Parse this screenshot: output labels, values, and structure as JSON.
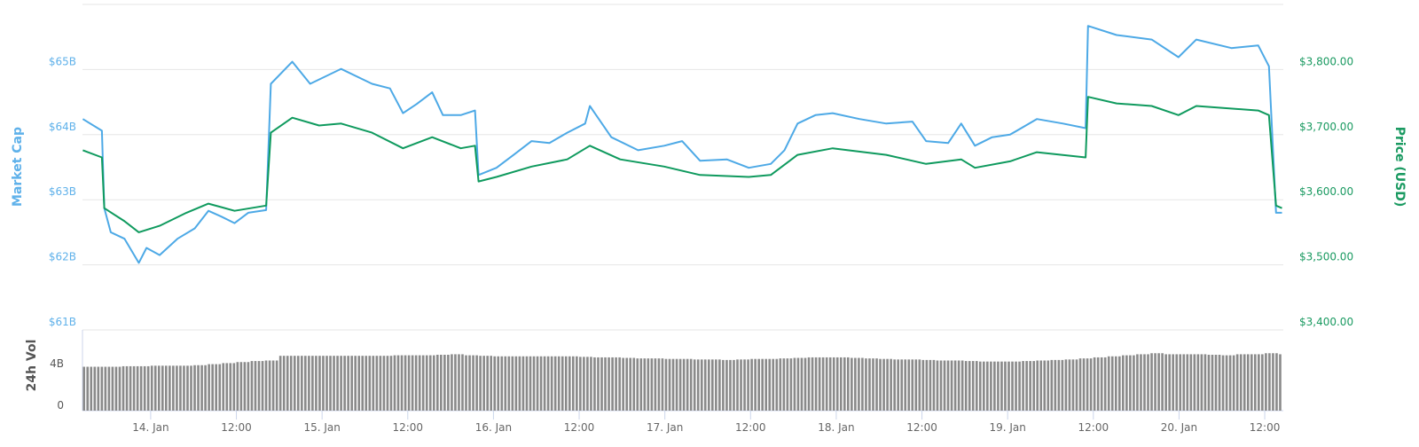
{
  "chart_data": {
    "type": "line",
    "colors": {
      "market_cap": "#4da9e6",
      "price": "#0f9a5e",
      "volume": "#8a8a8a",
      "grid": "#e6e6e6",
      "left_axis_text": "#5fb1ea",
      "right_axis_text": "#1a9a61",
      "volume_axis_text": "#555555"
    },
    "left_axis": {
      "label": "Market Cap",
      "ylim": [
        61,
        66
      ],
      "ticks": [
        {
          "v": 61,
          "label": "$61B"
        },
        {
          "v": 62,
          "label": "$62B"
        },
        {
          "v": 63,
          "label": "$63B"
        },
        {
          "v": 64,
          "label": "$64B"
        },
        {
          "v": 65,
          "label": "$65B"
        }
      ]
    },
    "right_axis": {
      "label": "Price (USD)",
      "ylim": [
        3400,
        3900
      ],
      "ticks": [
        {
          "v": 3400,
          "label": "$3,400.00"
        },
        {
          "v": 3500,
          "label": "$3,500.00"
        },
        {
          "v": 3600,
          "label": "$3,600.00"
        },
        {
          "v": 3700,
          "label": "$3,700.00"
        },
        {
          "v": 3800,
          "label": "$3,800.00"
        }
      ]
    },
    "volume_axis": {
      "label": "24h Vol",
      "ticks": [
        {
          "v": 0,
          "label": "0"
        },
        {
          "v": 4,
          "label": "4B"
        }
      ]
    },
    "x_ticks": [
      {
        "t": "01-14 00:00",
        "label": "14. Jan"
      },
      {
        "t": "01-14 12:00",
        "label": "12:00"
      },
      {
        "t": "01-15 00:00",
        "label": "15. Jan"
      },
      {
        "t": "01-15 12:00",
        "label": "12:00"
      },
      {
        "t": "01-16 00:00",
        "label": "16. Jan"
      },
      {
        "t": "01-16 12:00",
        "label": "12:00"
      },
      {
        "t": "01-17 00:00",
        "label": "17. Jan"
      },
      {
        "t": "01-17 12:00",
        "label": "12:00"
      },
      {
        "t": "01-18 00:00",
        "label": "18. Jan"
      },
      {
        "t": "01-18 12:00",
        "label": "12:00"
      },
      {
        "t": "01-19 00:00",
        "label": "19. Jan"
      },
      {
        "t": "01-19 12:00",
        "label": "12:00"
      },
      {
        "t": "01-20 00:00",
        "label": "20. Jan"
      },
      {
        "t": "01-20 12:00",
        "label": "12:00"
      }
    ],
    "xlim": [
      "01-13 14:27",
      "01-20 14:36"
    ],
    "grid": true,
    "series": [
      {
        "key": "market_cap",
        "axis": "left",
        "unit": "B USD",
        "points": [
          [
            "01-13 14:30",
            64.24
          ],
          [
            "01-13 17:10",
            64.06
          ],
          [
            "01-13 17:30",
            62.87
          ],
          [
            "01-13 18:25",
            62.5
          ],
          [
            "01-13 20:20",
            62.4
          ],
          [
            "01-13 22:20",
            62.03
          ],
          [
            "01-13 23:25",
            62.26
          ],
          [
            "01-14 01:15",
            62.15
          ],
          [
            "01-14 03:45",
            62.4
          ],
          [
            "01-14 06:10",
            62.56
          ],
          [
            "01-14 08:05",
            62.83
          ],
          [
            "01-14 09:55",
            62.74
          ],
          [
            "01-14 11:45",
            62.64
          ],
          [
            "01-14 13:40",
            62.8
          ],
          [
            "01-14 16:10",
            62.84
          ],
          [
            "01-14 16:50",
            64.78
          ],
          [
            "01-14 19:50",
            65.12
          ],
          [
            "01-14 22:20",
            64.78
          ],
          [
            "01-15 02:40",
            65.01
          ],
          [
            "01-15 07:00",
            64.78
          ],
          [
            "01-15 09:30",
            64.71
          ],
          [
            "01-15 11:20",
            64.33
          ],
          [
            "01-15 13:15",
            64.47
          ],
          [
            "01-15 15:25",
            64.65
          ],
          [
            "01-15 16:55",
            64.3
          ],
          [
            "01-15 19:25",
            64.3
          ],
          [
            "01-15 21:25",
            64.37
          ],
          [
            "01-15 21:55",
            63.38
          ],
          [
            "01-16 00:25",
            63.49
          ],
          [
            "01-16 02:50",
            63.69
          ],
          [
            "01-16 05:20",
            63.9
          ],
          [
            "01-16 07:50",
            63.87
          ],
          [
            "01-16 10:20",
            64.03
          ],
          [
            "01-16 12:50",
            64.17
          ],
          [
            "01-16 13:30",
            64.44
          ],
          [
            "01-16 16:30",
            63.96
          ],
          [
            "01-16 20:15",
            63.76
          ],
          [
            "01-16 23:55",
            63.83
          ],
          [
            "01-17 02:25",
            63.9
          ],
          [
            "01-17 04:55",
            63.6
          ],
          [
            "01-17 08:40",
            63.62
          ],
          [
            "01-17 11:45",
            63.49
          ],
          [
            "01-17 14:50",
            63.55
          ],
          [
            "01-17 16:45",
            63.76
          ],
          [
            "01-17 18:35",
            64.17
          ],
          [
            "01-17 21:05",
            64.3
          ],
          [
            "01-17 23:30",
            64.33
          ],
          [
            "01-18 03:15",
            64.24
          ],
          [
            "01-18 07:00",
            64.17
          ],
          [
            "01-18 10:40",
            64.2
          ],
          [
            "01-18 12:35",
            63.9
          ],
          [
            "01-18 15:40",
            63.87
          ],
          [
            "01-18 17:30",
            64.17
          ],
          [
            "01-18 19:25",
            63.83
          ],
          [
            "01-18 21:50",
            63.96
          ],
          [
            "01-19 00:20",
            64.0
          ],
          [
            "01-19 04:05",
            64.24
          ],
          [
            "01-19 07:45",
            64.17
          ],
          [
            "01-19 10:55",
            64.1
          ],
          [
            "01-19 11:15",
            65.67
          ],
          [
            "01-19 15:15",
            65.53
          ],
          [
            "01-19 20:10",
            65.46
          ],
          [
            "01-19 23:55",
            65.19
          ],
          [
            "01-20 02:25",
            65.46
          ],
          [
            "01-20 07:20",
            65.33
          ],
          [
            "01-20 11:05",
            65.37
          ],
          [
            "01-20 12:35",
            65.05
          ],
          [
            "01-20 13:35",
            62.8
          ],
          [
            "01-20 14:25",
            62.8
          ]
        ]
      },
      {
        "key": "price",
        "axis": "right",
        "unit": "USD",
        "points": [
          [
            "01-13 14:30",
            3676
          ],
          [
            "01-13 17:10",
            3665
          ],
          [
            "01-13 17:30",
            3587
          ],
          [
            "01-13 20:20",
            3567
          ],
          [
            "01-13 22:20",
            3550
          ],
          [
            "01-14 01:15",
            3560
          ],
          [
            "01-14 05:00",
            3580
          ],
          [
            "01-14 08:05",
            3594
          ],
          [
            "01-14 11:45",
            3583
          ],
          [
            "01-14 16:10",
            3591
          ],
          [
            "01-14 16:50",
            3703
          ],
          [
            "01-14 19:50",
            3726
          ],
          [
            "01-14 23:35",
            3714
          ],
          [
            "01-15 02:40",
            3717
          ],
          [
            "01-15 07:00",
            3703
          ],
          [
            "01-15 11:20",
            3679
          ],
          [
            "01-15 15:25",
            3696
          ],
          [
            "01-15 19:25",
            3679
          ],
          [
            "01-15 21:25",
            3683
          ],
          [
            "01-15 21:55",
            3628
          ],
          [
            "01-16 00:25",
            3635
          ],
          [
            "01-16 05:20",
            3651
          ],
          [
            "01-16 10:20",
            3662
          ],
          [
            "01-16 13:30",
            3683
          ],
          [
            "01-16 17:45",
            3662
          ],
          [
            "01-16 23:55",
            3651
          ],
          [
            "01-17 04:55",
            3638
          ],
          [
            "01-17 11:45",
            3635
          ],
          [
            "01-17 14:50",
            3638
          ],
          [
            "01-17 18:35",
            3669
          ],
          [
            "01-17 23:30",
            3679
          ],
          [
            "01-18 07:00",
            3669
          ],
          [
            "01-18 12:35",
            3655
          ],
          [
            "01-18 17:30",
            3662
          ],
          [
            "01-18 19:25",
            3649
          ],
          [
            "01-19 00:20",
            3659
          ],
          [
            "01-19 04:05",
            3673
          ],
          [
            "01-19 10:55",
            3665
          ],
          [
            "01-19 11:15",
            3758
          ],
          [
            "01-19 15:15",
            3748
          ],
          [
            "01-19 20:10",
            3744
          ],
          [
            "01-19 23:55",
            3730
          ],
          [
            "01-20 02:25",
            3744
          ],
          [
            "01-20 11:05",
            3737
          ],
          [
            "01-20 12:35",
            3730
          ],
          [
            "01-20 13:35",
            3591
          ],
          [
            "01-20 14:25",
            3587
          ]
        ]
      }
    ],
    "volume": {
      "unit": "B USD",
      "start": "01-13 14:00",
      "interval_hours": 2,
      "values": [
        3.7,
        3.7,
        3.7,
        3.75,
        3.75,
        3.8,
        3.8,
        3.8,
        3.85,
        3.95,
        4.05,
        4.15,
        4.25,
        4.3,
        4.75,
        4.75,
        4.75,
        4.75,
        4.75,
        4.75,
        4.75,
        4.75,
        4.8,
        4.8,
        4.8,
        4.85,
        4.9,
        4.8,
        4.75,
        4.7,
        4.7,
        4.7,
        4.7,
        4.7,
        4.7,
        4.65,
        4.6,
        4.6,
        4.55,
        4.5,
        4.5,
        4.45,
        4.45,
        4.4,
        4.4,
        4.35,
        4.4,
        4.45,
        4.45,
        4.5,
        4.55,
        4.6,
        4.6,
        4.6,
        4.55,
        4.5,
        4.45,
        4.4,
        4.4,
        4.35,
        4.3,
        4.3,
        4.25,
        4.2,
        4.2,
        4.2,
        4.25,
        4.3,
        4.35,
        4.4,
        4.5,
        4.6,
        4.7,
        4.8,
        4.9,
        5.0,
        4.9,
        4.9,
        4.9,
        4.85,
        4.8,
        4.9,
        4.9,
        5.0,
        4.9
      ]
    }
  }
}
